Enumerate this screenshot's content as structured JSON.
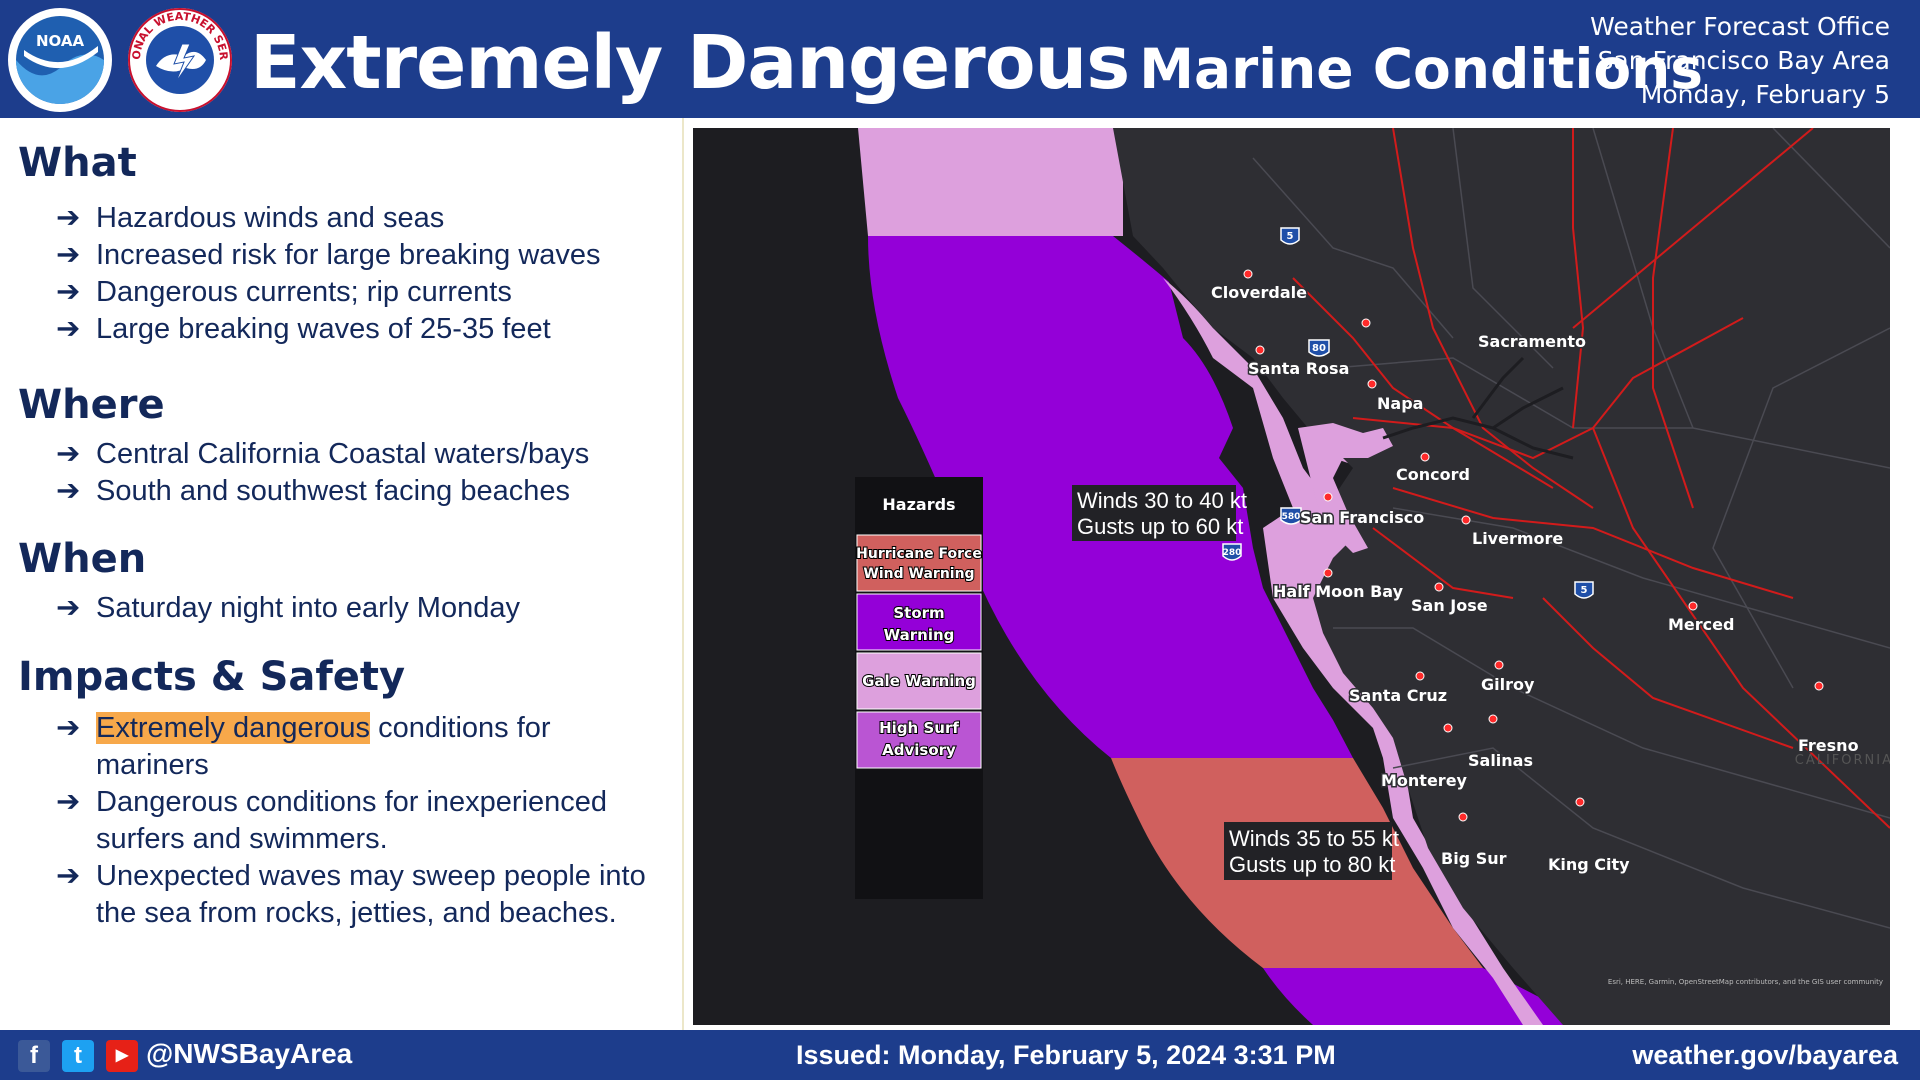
{
  "header": {
    "title_main": "Extremely Dangerous",
    "title_sub": "Marine Conditions",
    "office_line1": "Weather Forecast Office",
    "office_line2": "San Francisco Bay Area",
    "office_line3": "Monday, February 5",
    "noaa_logo_text": "NOAA",
    "nws_logo_text": "NATIONAL WEATHER SERVICE"
  },
  "sections": {
    "what": {
      "heading": "What",
      "items": [
        "Hazardous winds and seas",
        "Increased risk for large breaking waves",
        "Dangerous currents; rip currents",
        "Large breaking waves of 25-35 feet"
      ]
    },
    "where": {
      "heading": "Where",
      "items": [
        "Central California Coastal waters/bays",
        "South and southwest facing beaches"
      ]
    },
    "when": {
      "heading": "When",
      "items": [
        "Saturday night into early Monday"
      ]
    },
    "impacts": {
      "heading": "Impacts & Safety",
      "item1_highlight": "Extremely dangerous",
      "item1_rest": " conditions for mariners",
      "item2": "Dangerous conditions for inexperienced surfers and swimmers.",
      "item3": "Unexpected waves may sweep people into the sea from rocks, jetties, and beaches."
    }
  },
  "legend": {
    "title": "Hazards",
    "hurricane_l1": "Hurricane Force",
    "hurricane_l2": "Wind Warning",
    "storm_l1": "Storm",
    "storm_l2": "Warning",
    "gale": "Gale Warning",
    "surf_l1": "High Surf",
    "surf_l2": "Advisory"
  },
  "colors": {
    "hurricane": "#d0605e",
    "storm": "#9400d8",
    "gale": "#dda0dd",
    "surf": "#ba55d3",
    "header_bg": "#1d3d8c",
    "text_navy": "#13285a",
    "highlight": "#f7a84a"
  },
  "map": {
    "wind_box1_l1": "Winds 30 to 40 kt",
    "wind_box1_l2": "Gusts up to 60 kt",
    "wind_box2_l1": "Winds 35 to 55 kt",
    "wind_box2_l2": "Gusts up to 80 kt",
    "cities": {
      "cloverdale": "Cloverdale",
      "sacramento": "Sacramento",
      "santa_rosa": "Santa Rosa",
      "napa": "Napa",
      "concord": "Concord",
      "san_francisco": "San Francisco",
      "livermore": "Livermore",
      "half_moon_bay": "Half Moon Bay",
      "san_jose": "San Jose",
      "merced": "Merced",
      "santa_cruz": "Santa Cruz",
      "gilroy": "Gilroy",
      "salinas": "Salinas",
      "monterey": "Monterey",
      "fresno": "Fresno",
      "big_sur": "Big Sur",
      "king_city": "King City"
    },
    "highway_shields": {
      "i5_north": "5",
      "i80": "80",
      "i580": "580",
      "i280": "280",
      "i5_south": "5"
    },
    "state_label": "CALIFORNIA",
    "attribution": "Esri, HERE, Garmin, OpenStreetMap contributors, and the GIS user community"
  },
  "footer": {
    "handle": "@NWSBayArea",
    "issued": "Issued: Monday, February 5, 2024 3:31 PM",
    "website": "weather.gov/bayarea",
    "facebook_glyph": "f",
    "twitter_glyph": "t",
    "youtube_glyph": "▶"
  }
}
